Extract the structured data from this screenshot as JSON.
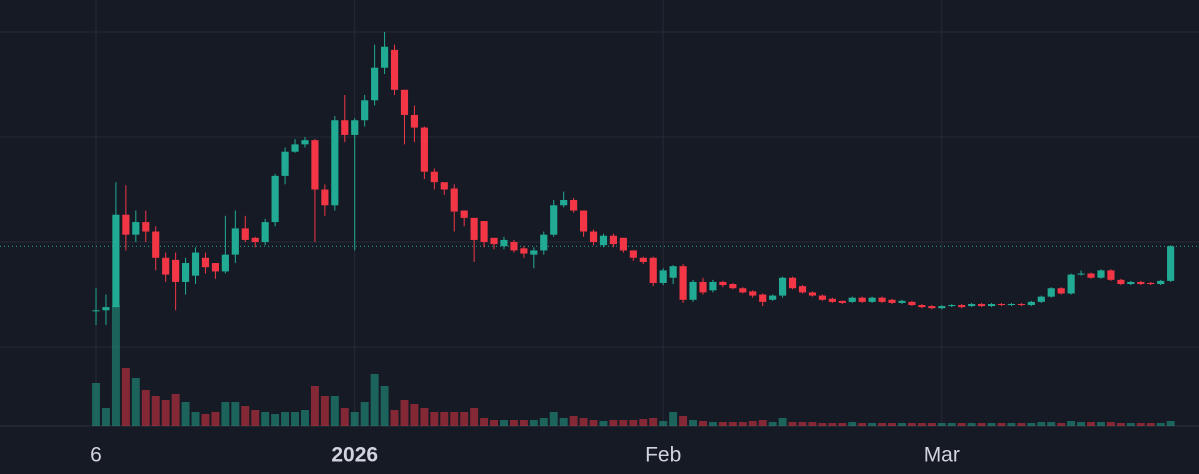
{
  "chart_data": {
    "type": "candlestick",
    "up_color": "#22ab94",
    "down_color": "#f23645",
    "xlim": [
      -9.65,
      110.85
    ],
    "xticks": [
      {
        "value": 0,
        "label": "6"
      },
      {
        "value": 26,
        "label": "2026"
      },
      {
        "value": 57,
        "label": "Feb"
      },
      {
        "value": 85,
        "label": "Mar"
      }
    ],
    "ylim": [
      0.248,
      4.305
    ],
    "yticks": [
      1,
      2,
      3,
      4
    ],
    "y2lim": [
      0,
      42.6
    ],
    "grid": true,
    "open": [
      1.34,
      1.35,
      1.38,
      2.26,
      2.07,
      2.19,
      2.1,
      1.85,
      1.83,
      1.62,
      1.68,
      1.85,
      1.8,
      1.72,
      1.88,
      2.13,
      2.04,
      2.0,
      2.19,
      2.63,
      2.86,
      2.93,
      2.97,
      2.5,
      2.35,
      3.16,
      3.02,
      3.16,
      3.35,
      3.66,
      3.83,
      3.45,
      3.21,
      3.09,
      2.67,
      2.57,
      2.51,
      2.3,
      2.23,
      2.2,
      2.04,
      1.96,
      2.0,
      1.94,
      1.88,
      1.92,
      2.07,
      2.35,
      2.4,
      2.3,
      2.1,
      1.97,
      2.06,
      2.04,
      1.92,
      1.85,
      1.85,
      1.61,
      1.66,
      1.77,
      1.45,
      1.62,
      1.54,
      1.62,
      1.6,
      1.56,
      1.53,
      1.5,
      1.45,
      1.49,
      1.66,
      1.58,
      1.52,
      1.49,
      1.46,
      1.44,
      1.43,
      1.47,
      1.43,
      1.47,
      1.45,
      1.42,
      1.43,
      1.4,
      1.39,
      1.37,
      1.39,
      1.4,
      1.39,
      1.41,
      1.39,
      1.41,
      1.4,
      1.41,
      1.4,
      1.43,
      1.48,
      1.56,
      1.51,
      1.69,
      1.7,
      1.66,
      1.73,
      1.64,
      1.6,
      1.62,
      1.61,
      1.6,
      1.63
    ],
    "close": [
      1.35,
      1.38,
      2.26,
      2.07,
      2.19,
      2.1,
      1.85,
      1.69,
      1.62,
      1.8,
      1.9,
      1.76,
      1.72,
      1.88,
      2.13,
      2.02,
      2.0,
      2.19,
      2.63,
      2.86,
      2.93,
      2.97,
      2.5,
      2.35,
      3.16,
      3.02,
      3.16,
      3.35,
      3.66,
      3.86,
      3.45,
      3.21,
      3.09,
      2.67,
      2.57,
      2.5,
      2.29,
      2.23,
      2.02,
      2.0,
      1.98,
      2.02,
      1.92,
      1.89,
      1.92,
      2.07,
      2.35,
      2.4,
      2.3,
      2.1,
      2.0,
      2.06,
      1.98,
      1.92,
      1.85,
      1.81,
      1.61,
      1.73,
      1.77,
      1.45,
      1.62,
      1.52,
      1.62,
      1.59,
      1.56,
      1.52,
      1.49,
      1.43,
      1.49,
      1.66,
      1.56,
      1.52,
      1.49,
      1.45,
      1.43,
      1.42,
      1.47,
      1.43,
      1.47,
      1.43,
      1.42,
      1.44,
      1.4,
      1.38,
      1.37,
      1.39,
      1.4,
      1.38,
      1.41,
      1.39,
      1.41,
      1.4,
      1.41,
      1.4,
      1.43,
      1.48,
      1.56,
      1.51,
      1.69,
      1.7,
      1.66,
      1.73,
      1.64,
      1.6,
      1.62,
      1.6,
      1.6,
      1.63,
      1.96
    ],
    "high": [
      1.56,
      1.5,
      2.57,
      2.54,
      2.3,
      2.3,
      2.15,
      1.9,
      1.9,
      1.85,
      1.95,
      1.9,
      1.8,
      2.25,
      2.3,
      2.25,
      2.05,
      2.22,
      2.65,
      2.9,
      2.98,
      3.0,
      2.98,
      2.55,
      3.2,
      3.4,
      3.18,
      3.4,
      3.88,
      4.0,
      3.88,
      3.45,
      3.3,
      3.1,
      2.7,
      2.55,
      2.55,
      2.3,
      2.23,
      2.2,
      2.04,
      2.05,
      2.02,
      1.96,
      1.95,
      2.1,
      2.4,
      2.48,
      2.42,
      2.3,
      2.12,
      2.08,
      2.08,
      2.04,
      1.92,
      1.86,
      1.86,
      1.75,
      1.78,
      1.79,
      1.64,
      1.66,
      1.64,
      1.63,
      1.61,
      1.57,
      1.54,
      1.51,
      1.5,
      1.67,
      1.67,
      1.59,
      1.53,
      1.5,
      1.47,
      1.44,
      1.48,
      1.48,
      1.48,
      1.48,
      1.46,
      1.45,
      1.44,
      1.41,
      1.4,
      1.4,
      1.41,
      1.41,
      1.42,
      1.42,
      1.42,
      1.42,
      1.42,
      1.42,
      1.44,
      1.49,
      1.57,
      1.57,
      1.7,
      1.73,
      1.71,
      1.74,
      1.74,
      1.65,
      1.63,
      1.63,
      1.62,
      1.64,
      1.97
    ],
    "low": [
      1.21,
      1.21,
      1.38,
      1.92,
      2.0,
      2.0,
      1.73,
      1.62,
      1.35,
      1.5,
      1.6,
      1.7,
      1.65,
      1.7,
      1.8,
      2.0,
      1.95,
      1.97,
      2.15,
      2.55,
      2.85,
      2.9,
      2.0,
      2.25,
      2.3,
      2.95,
      1.92,
      3.1,
      3.3,
      3.6,
      3.4,
      2.93,
      2.95,
      2.6,
      2.5,
      2.45,
      2.1,
      2.15,
      1.81,
      1.95,
      1.93,
      1.93,
      1.9,
      1.85,
      1.75,
      1.88,
      2.05,
      2.33,
      2.28,
      2.05,
      1.97,
      1.95,
      1.95,
      1.9,
      1.82,
      1.79,
      1.58,
      1.59,
      1.6,
      1.42,
      1.43,
      1.5,
      1.52,
      1.57,
      1.55,
      1.51,
      1.47,
      1.39,
      1.44,
      1.47,
      1.55,
      1.51,
      1.48,
      1.44,
      1.42,
      1.41,
      1.42,
      1.42,
      1.42,
      1.42,
      1.41,
      1.41,
      1.39,
      1.37,
      1.36,
      1.36,
      1.38,
      1.37,
      1.38,
      1.38,
      1.38,
      1.39,
      1.39,
      1.39,
      1.39,
      1.42,
      1.47,
      1.5,
      1.5,
      1.68,
      1.65,
      1.65,
      1.63,
      1.59,
      1.59,
      1.59,
      1.59,
      1.59,
      1.62
    ],
    "volume": [
      4.3,
      1.8,
      12.1,
      5.8,
      4.8,
      3.6,
      3.0,
      2.6,
      3.2,
      2.4,
      1.4,
      1.2,
      1.4,
      2.4,
      2.4,
      2.0,
      1.6,
      1.4,
      1.2,
      1.4,
      1.4,
      1.6,
      4.0,
      3.0,
      3.0,
      1.8,
      1.4,
      2.4,
      5.2,
      4.0,
      1.6,
      2.6,
      2.2,
      1.8,
      1.4,
      1.4,
      1.4,
      1.4,
      1.8,
      0.8,
      0.6,
      0.6,
      0.6,
      0.6,
      0.6,
      0.8,
      1.4,
      0.8,
      1.0,
      0.8,
      0.6,
      0.5,
      0.6,
      0.6,
      0.6,
      0.7,
      0.8,
      0.5,
      1.4,
      1.0,
      0.6,
      0.5,
      0.4,
      0.4,
      0.4,
      0.4,
      0.5,
      0.6,
      0.4,
      0.8,
      0.4,
      0.4,
      0.4,
      0.3,
      0.3,
      0.3,
      0.4,
      0.3,
      0.3,
      0.3,
      0.3,
      0.3,
      0.3,
      0.3,
      0.3,
      0.3,
      0.3,
      0.3,
      0.3,
      0.3,
      0.3,
      0.3,
      0.3,
      0.3,
      0.3,
      0.4,
      0.4,
      0.3,
      0.5,
      0.4,
      0.4,
      0.4,
      0.4,
      0.3,
      0.3,
      0.3,
      0.3,
      0.3,
      0.5
    ]
  }
}
